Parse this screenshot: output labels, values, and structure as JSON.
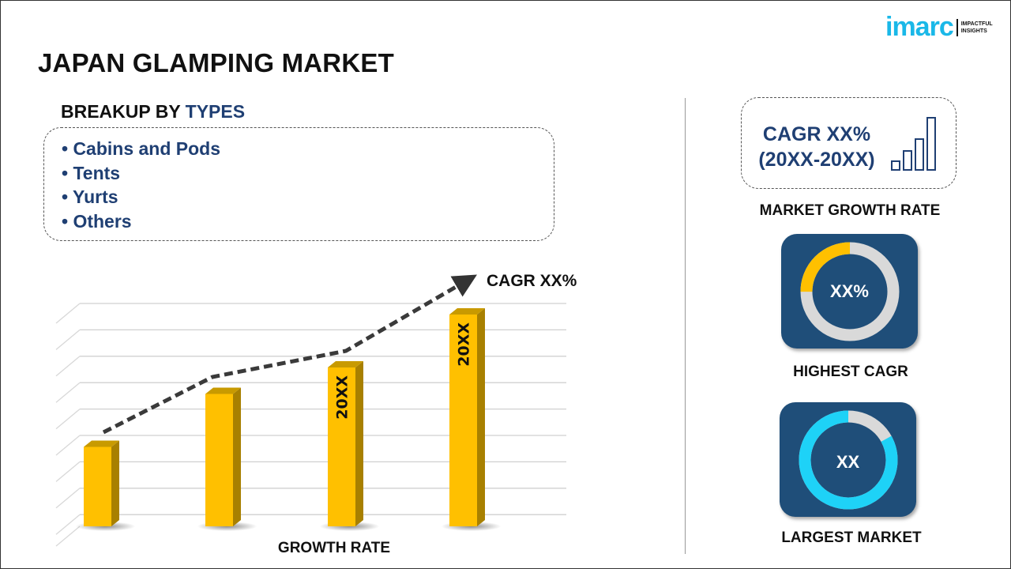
{
  "title": "JAPAN GLAMPING MARKET",
  "logo": {
    "brand": "imarc",
    "tagline_1": "IMPACTFUL",
    "tagline_2": "INSIGHTS"
  },
  "breakup": {
    "prefix": "BREAKUP BY ",
    "highlight": "TYPES",
    "items": [
      "• Cabins and Pods",
      "• Tents",
      "• Yurts",
      "• Others"
    ]
  },
  "chart_data": {
    "type": "bar",
    "categories": [
      "",
      "",
      "",
      ""
    ],
    "values": [
      3,
      5,
      6,
      8
    ],
    "bar_labels": [
      "",
      "",
      "20XX",
      "20XX"
    ],
    "trend_annotation": "CAGR XX%",
    "xlabel": "GROWTH RATE",
    "ylabel": "",
    "ylim": [
      0,
      8.5
    ],
    "grid": true,
    "bar_color": "#ffc000"
  },
  "market_growth": {
    "line1": "CAGR XX%",
    "line2": "(20XX-20XX)",
    "label": "MARKET GROWTH RATE"
  },
  "highest_cagr": {
    "value": "XX%",
    "label": "HIGHEST CAGR",
    "fraction": 0.25,
    "color": "#ffc000"
  },
  "largest_market": {
    "value": "XX",
    "label": "LARGEST MARKET",
    "fraction": 0.83,
    "color": "#1ed2f7"
  },
  "colors": {
    "navy": "#1f4e79",
    "accent_text": "#1f3f73",
    "logo": "#1ab8e8"
  }
}
